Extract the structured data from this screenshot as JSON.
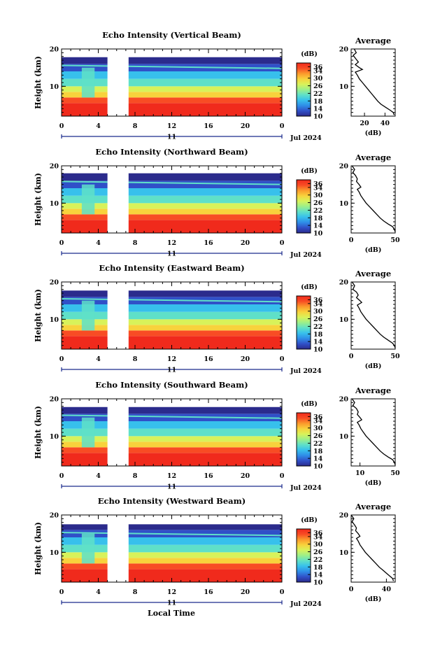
{
  "figure": {
    "xlabel": "Local Time",
    "date_label": "Jul 2024",
    "day_label": "11"
  },
  "colorbar": {
    "unit_label": "(dB)",
    "ticks": [
      "36",
      "34",
      "30",
      "26",
      "22",
      "18",
      "14",
      "10"
    ],
    "range": [
      10,
      38
    ],
    "colors": [
      "#2b2b8c",
      "#3050c8",
      "#2f8ee8",
      "#37c0ec",
      "#5fe0c8",
      "#9cef8a",
      "#d8f25a",
      "#f8d23c",
      "#fb9a2c",
      "#f84c24",
      "#f02a1c"
    ]
  },
  "chart_data": [
    {
      "type": "heatmap",
      "title": "Echo Intensity (Vertical Beam)",
      "ylabel": "Height (km)",
      "xlim": [
        0,
        24
      ],
      "ylim": [
        2,
        20
      ],
      "x_ticks": [
        "0",
        "4",
        "8",
        "12",
        "16",
        "20",
        "0"
      ],
      "y_ticks": [
        "10",
        "20"
      ],
      "data_gap_hours": [
        5,
        7.3
      ],
      "top_km": 17.8,
      "profile": {
        "title": "Average",
        "xlabel": "(dB)",
        "xlim": [
          7,
          50
        ],
        "x_ticks": [
          "20",
          "40"
        ],
        "tick_values": [
          20,
          40
        ],
        "ylim": [
          2,
          20
        ],
        "y_ticks": [
          "10",
          "20"
        ],
        "points": [
          [
            10,
            20
          ],
          [
            12,
            19
          ],
          [
            9,
            18.3
          ],
          [
            12,
            17.2
          ],
          [
            14,
            16.5
          ],
          [
            11,
            15.8
          ],
          [
            15,
            15
          ],
          [
            18,
            14.5
          ],
          [
            11,
            13.8
          ],
          [
            13,
            13
          ],
          [
            15,
            12
          ],
          [
            18,
            11
          ],
          [
            21,
            10
          ],
          [
            24,
            9
          ],
          [
            27,
            8
          ],
          [
            30,
            7
          ],
          [
            33,
            6
          ],
          [
            36,
            5.2
          ],
          [
            41,
            4.3
          ],
          [
            45,
            3.6
          ],
          [
            48,
            3
          ],
          [
            49,
            2.3
          ]
        ]
      }
    },
    {
      "type": "heatmap",
      "title": "Echo Intensity (Northward Beam)",
      "ylabel": "Height (km)",
      "xlim": [
        0,
        24
      ],
      "ylim": [
        2,
        20
      ],
      "x_ticks": [
        "0",
        "4",
        "8",
        "12",
        "16",
        "20",
        "0"
      ],
      "y_ticks": [
        "10",
        "20"
      ],
      "data_gap_hours": [
        5,
        7.3
      ],
      "top_km": 18,
      "profile": {
        "title": "Average",
        "xlabel": "(dB)",
        "xlim": [
          0,
          50
        ],
        "x_ticks": [
          "0",
          "50"
        ],
        "tick_values": [
          0,
          50
        ],
        "ylim": [
          2,
          20
        ],
        "y_ticks": [
          "10",
          "20"
        ],
        "points": [
          [
            1,
            20
          ],
          [
            4,
            19
          ],
          [
            2,
            18.2
          ],
          [
            5,
            17.4
          ],
          [
            7,
            16.5
          ],
          [
            6,
            15.8
          ],
          [
            9,
            15
          ],
          [
            11,
            14.3
          ],
          [
            7,
            13.7
          ],
          [
            9,
            13
          ],
          [
            11,
            12
          ],
          [
            14,
            11
          ],
          [
            17,
            10
          ],
          [
            21,
            9
          ],
          [
            25,
            8
          ],
          [
            29,
            7
          ],
          [
            33,
            6
          ],
          [
            37,
            5.2
          ],
          [
            42,
            4.4
          ],
          [
            47,
            3.7
          ],
          [
            49,
            3
          ],
          [
            50,
            2.3
          ]
        ]
      }
    },
    {
      "type": "heatmap",
      "title": "Echo Intensity (Eastward Beam)",
      "ylabel": "Height (km)",
      "xlim": [
        0,
        24
      ],
      "ylim": [
        2,
        20
      ],
      "x_ticks": [
        "0",
        "4",
        "8",
        "12",
        "16",
        "20",
        "0"
      ],
      "y_ticks": [
        "10",
        "20"
      ],
      "data_gap_hours": [
        5,
        7.3
      ],
      "top_km": 17.7,
      "profile": {
        "title": "Average",
        "xlabel": "(dB)",
        "xlim": [
          0,
          50
        ],
        "x_ticks": [
          "0",
          "50"
        ],
        "tick_values": [
          0,
          50
        ],
        "ylim": [
          2,
          20
        ],
        "y_ticks": [
          "10",
          "20"
        ],
        "points": [
          [
            1,
            20
          ],
          [
            4,
            19
          ],
          [
            2,
            18
          ],
          [
            6,
            17.3
          ],
          [
            8,
            16.5
          ],
          [
            6,
            15.8
          ],
          [
            10,
            15
          ],
          [
            12,
            14.5
          ],
          [
            7,
            13.8
          ],
          [
            9,
            13
          ],
          [
            11,
            12
          ],
          [
            14,
            11
          ],
          [
            17,
            10
          ],
          [
            21,
            9
          ],
          [
            25,
            8
          ],
          [
            29,
            7
          ],
          [
            33,
            6
          ],
          [
            37,
            5.2
          ],
          [
            42,
            4.4
          ],
          [
            47,
            3.6
          ],
          [
            49,
            3
          ],
          [
            50,
            2.3
          ]
        ]
      }
    },
    {
      "type": "heatmap",
      "title": "Echo Intensity (Southward Beam)",
      "ylabel": "Height (km)",
      "xlim": [
        0,
        24
      ],
      "ylim": [
        2,
        20
      ],
      "x_ticks": [
        "0",
        "4",
        "8",
        "12",
        "16",
        "20",
        "0"
      ],
      "y_ticks": [
        "10",
        "20"
      ],
      "data_gap_hours": [
        5,
        7.3
      ],
      "top_km": 17.8,
      "profile": {
        "title": "Average",
        "xlabel": "(dB)",
        "xlim": [
          0,
          50
        ],
        "x_ticks": [
          "10",
          "50"
        ],
        "tick_values": [
          10,
          50
        ],
        "ylim": [
          2,
          20
        ],
        "y_ticks": [
          "10",
          "20"
        ],
        "points": [
          [
            1,
            20
          ],
          [
            4,
            19
          ],
          [
            2,
            18.2
          ],
          [
            6,
            17.4
          ],
          [
            8,
            16.5
          ],
          [
            7,
            15.8
          ],
          [
            10,
            15
          ],
          [
            12,
            14.4
          ],
          [
            7,
            13.7
          ],
          [
            9,
            13
          ],
          [
            11,
            12
          ],
          [
            14,
            11
          ],
          [
            17,
            10
          ],
          [
            21,
            9
          ],
          [
            25,
            8
          ],
          [
            29,
            7
          ],
          [
            33,
            6
          ],
          [
            37,
            5.2
          ],
          [
            42,
            4.4
          ],
          [
            47,
            3.7
          ],
          [
            49,
            3
          ],
          [
            50,
            2.3
          ]
        ]
      }
    },
    {
      "type": "heatmap",
      "title": "Echo Intensity (Westward Beam)",
      "ylabel": "Height (km)",
      "xlim": [
        0,
        24
      ],
      "ylim": [
        2,
        20
      ],
      "x_ticks": [
        "0",
        "4",
        "8",
        "12",
        "16",
        "20",
        "0"
      ],
      "y_ticks": [
        "10",
        "20"
      ],
      "data_gap_hours": [
        5,
        7.3
      ],
      "top_km": 17.5,
      "profile": {
        "title": "Average",
        "xlabel": "(dB)",
        "xlim": [
          0,
          50
        ],
        "x_ticks": [
          "0",
          "40"
        ],
        "tick_values": [
          0,
          40
        ],
        "ylim": [
          2,
          20
        ],
        "y_ticks": [
          "10",
          "20"
        ],
        "points": [
          [
            0,
            20
          ],
          [
            3,
            19
          ],
          [
            1,
            18.2
          ],
          [
            4,
            17.3
          ],
          [
            6,
            16.5
          ],
          [
            5,
            15.8
          ],
          [
            8,
            15
          ],
          [
            10,
            14.3
          ],
          [
            6,
            13.7
          ],
          [
            8,
            13
          ],
          [
            10,
            12
          ],
          [
            13,
            11
          ],
          [
            16,
            10
          ],
          [
            20,
            9
          ],
          [
            24,
            8
          ],
          [
            28,
            7
          ],
          [
            32,
            6
          ],
          [
            36,
            5.2
          ],
          [
            40,
            4.4
          ],
          [
            44,
            3.6
          ],
          [
            47,
            3
          ],
          [
            48,
            2.3
          ]
        ]
      }
    }
  ]
}
